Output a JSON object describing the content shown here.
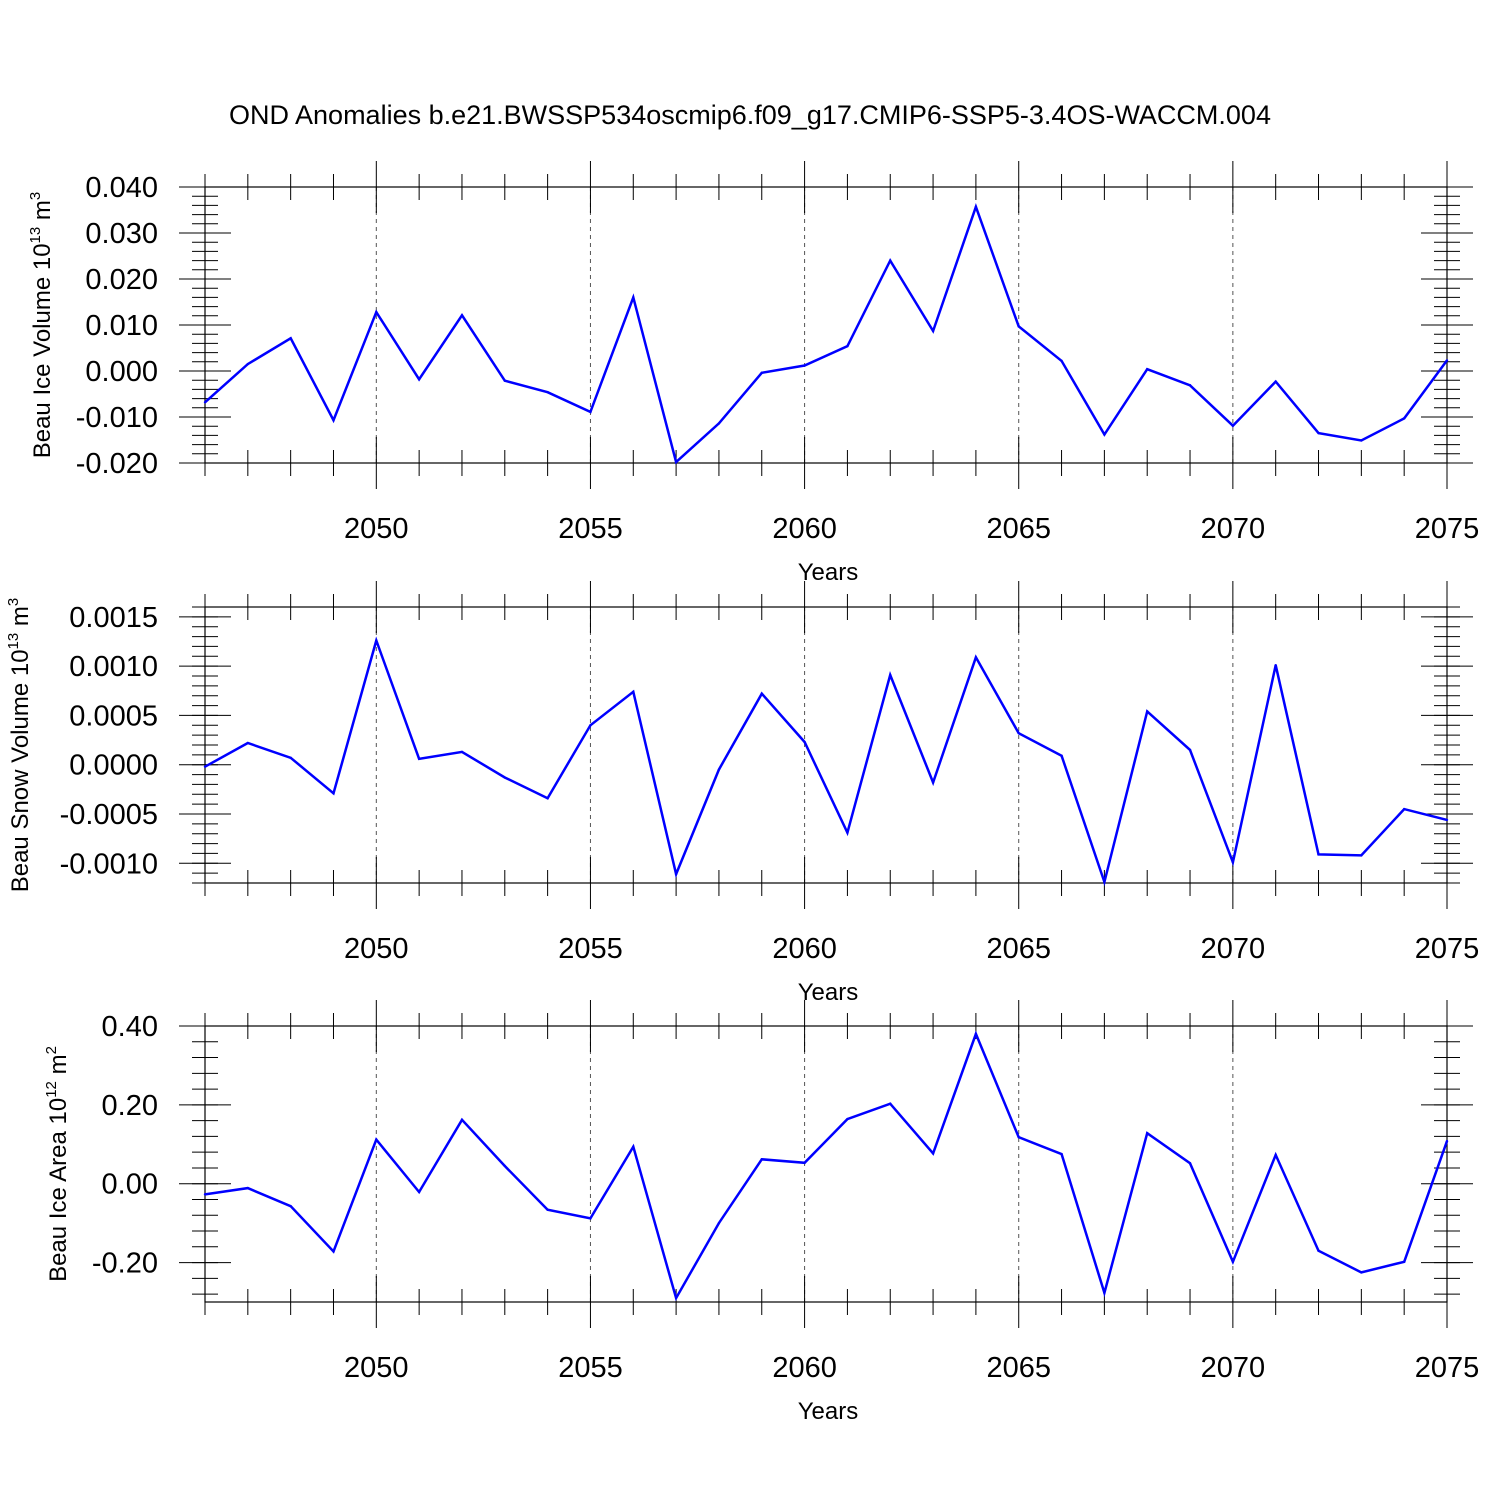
{
  "title": "OND Anomalies b.e21.BWSSP534oscmip6.f09_g17.CMIP6-SSP5-3.4OS-WACCM.004",
  "colors": {
    "series": "#0000ff",
    "axis": "#000000",
    "grid": "#555555"
  },
  "chart_data": [
    {
      "type": "line",
      "name": "ice-volume",
      "ylabel": "Beau Ice Volume 10",
      "ylabel_exp": "13",
      "ylabel_unit": " m",
      "ylabel_unit_exp": "3",
      "xlabel": "Years",
      "xlim": [
        2046,
        2075
      ],
      "ylim": [
        -0.02,
        0.04
      ],
      "yticks": [
        -0.02,
        -0.01,
        0.0,
        0.01,
        0.02,
        0.03,
        0.04
      ],
      "ytick_labels": [
        "-0.020",
        "-0.010",
        "0.000",
        "0.010",
        "0.020",
        "0.030",
        "0.040"
      ],
      "yminor_step": 0.002,
      "xticks": [
        2050,
        2055,
        2060,
        2065,
        2070,
        2075
      ],
      "xtick_labels": [
        "2050",
        "2055",
        "2060",
        "2065",
        "2070",
        "2075"
      ],
      "grid_x": [
        2050,
        2055,
        2060,
        2065,
        2070
      ],
      "x": [
        2046,
        2047,
        2048,
        2049,
        2050,
        2051,
        2052,
        2053,
        2054,
        2055,
        2056,
        2057,
        2058,
        2059,
        2060,
        2061,
        2062,
        2063,
        2064,
        2065,
        2066,
        2067,
        2068,
        2069,
        2070,
        2071,
        2072,
        2073,
        2074,
        2075
      ],
      "values": [
        -0.0068,
        0.0015,
        0.0071,
        -0.0107,
        0.0128,
        -0.0018,
        0.0121,
        -0.0021,
        -0.0046,
        -0.0089,
        0.016,
        -0.0198,
        -0.0114,
        -0.0004,
        0.0012,
        0.0054,
        0.024,
        0.0087,
        0.0357,
        0.0097,
        0.0022,
        -0.0138,
        0.0004,
        -0.0031,
        -0.0119,
        -0.0023,
        -0.0135,
        -0.0151,
        -0.0103,
        0.0023
      ]
    },
    {
      "type": "line",
      "name": "snow-volume",
      "ylabel": "Beau Snow Volume 10",
      "ylabel_exp": "13",
      "ylabel_unit": " m",
      "ylabel_unit_exp": "3",
      "xlabel": "Years",
      "xlim": [
        2046,
        2075
      ],
      "ylim": [
        -0.0012,
        0.0016
      ],
      "yticks": [
        -0.001,
        -0.0005,
        0.0,
        0.0005,
        0.001,
        0.0015
      ],
      "ytick_labels": [
        "-0.0010",
        "-0.0005",
        "0.0000",
        "0.0005",
        "0.0010",
        "0.0015"
      ],
      "yminor_step": 0.0001,
      "xticks": [
        2050,
        2055,
        2060,
        2065,
        2070,
        2075
      ],
      "xtick_labels": [
        "2050",
        "2055",
        "2060",
        "2065",
        "2070",
        "2075"
      ],
      "grid_x": [
        2050,
        2055,
        2060,
        2065,
        2070
      ],
      "x": [
        2046,
        2047,
        2048,
        2049,
        2050,
        2051,
        2052,
        2053,
        2054,
        2055,
        2056,
        2057,
        2058,
        2059,
        2060,
        2061,
        2062,
        2063,
        2064,
        2065,
        2066,
        2067,
        2068,
        2069,
        2070,
        2071,
        2072,
        2073,
        2074,
        2075
      ],
      "values": [
        -2e-05,
        0.00022,
        7e-05,
        -0.00029,
        0.00126,
        6e-05,
        0.00013,
        -0.00013,
        -0.00034,
        0.0004,
        0.00074,
        -0.00111,
        -5e-05,
        0.00072,
        0.00023,
        -0.00069,
        0.00091,
        -0.00018,
        0.00109,
        0.00032,
        9e-05,
        -0.00119,
        0.00054,
        0.00015,
        -0.00099,
        0.00101,
        -0.00091,
        -0.00092,
        -0.00045,
        -0.00056
      ]
    },
    {
      "type": "line",
      "name": "ice-area",
      "ylabel": "Beau Ice Area 10",
      "ylabel_exp": "12",
      "ylabel_unit": " m",
      "ylabel_unit_exp": "2",
      "xlabel": "Years",
      "xlim": [
        2046,
        2075
      ],
      "ylim": [
        -0.3,
        0.4
      ],
      "yticks": [
        -0.2,
        0.0,
        0.2,
        0.4
      ],
      "ytick_labels": [
        "-0.20",
        "0.00",
        "0.20",
        "0.40"
      ],
      "yminor_step": 0.04,
      "xticks": [
        2050,
        2055,
        2060,
        2065,
        2070,
        2075
      ],
      "xtick_labels": [
        "2050",
        "2055",
        "2060",
        "2065",
        "2070",
        "2075"
      ],
      "grid_x": [
        2050,
        2055,
        2060,
        2065,
        2070
      ],
      "x": [
        2046,
        2047,
        2048,
        2049,
        2050,
        2051,
        2052,
        2053,
        2054,
        2055,
        2056,
        2057,
        2058,
        2059,
        2060,
        2061,
        2062,
        2063,
        2064,
        2065,
        2066,
        2067,
        2068,
        2069,
        2070,
        2071,
        2072,
        2073,
        2074,
        2075
      ],
      "values": [
        -0.027,
        -0.011,
        -0.057,
        -0.172,
        0.112,
        -0.021,
        0.162,
        0.045,
        -0.066,
        -0.088,
        0.094,
        -0.29,
        -0.1,
        0.062,
        0.053,
        0.164,
        0.203,
        0.077,
        0.38,
        0.118,
        0.075,
        -0.277,
        0.128,
        0.052,
        -0.198,
        0.073,
        -0.17,
        -0.225,
        -0.198,
        0.108
      ]
    }
  ]
}
